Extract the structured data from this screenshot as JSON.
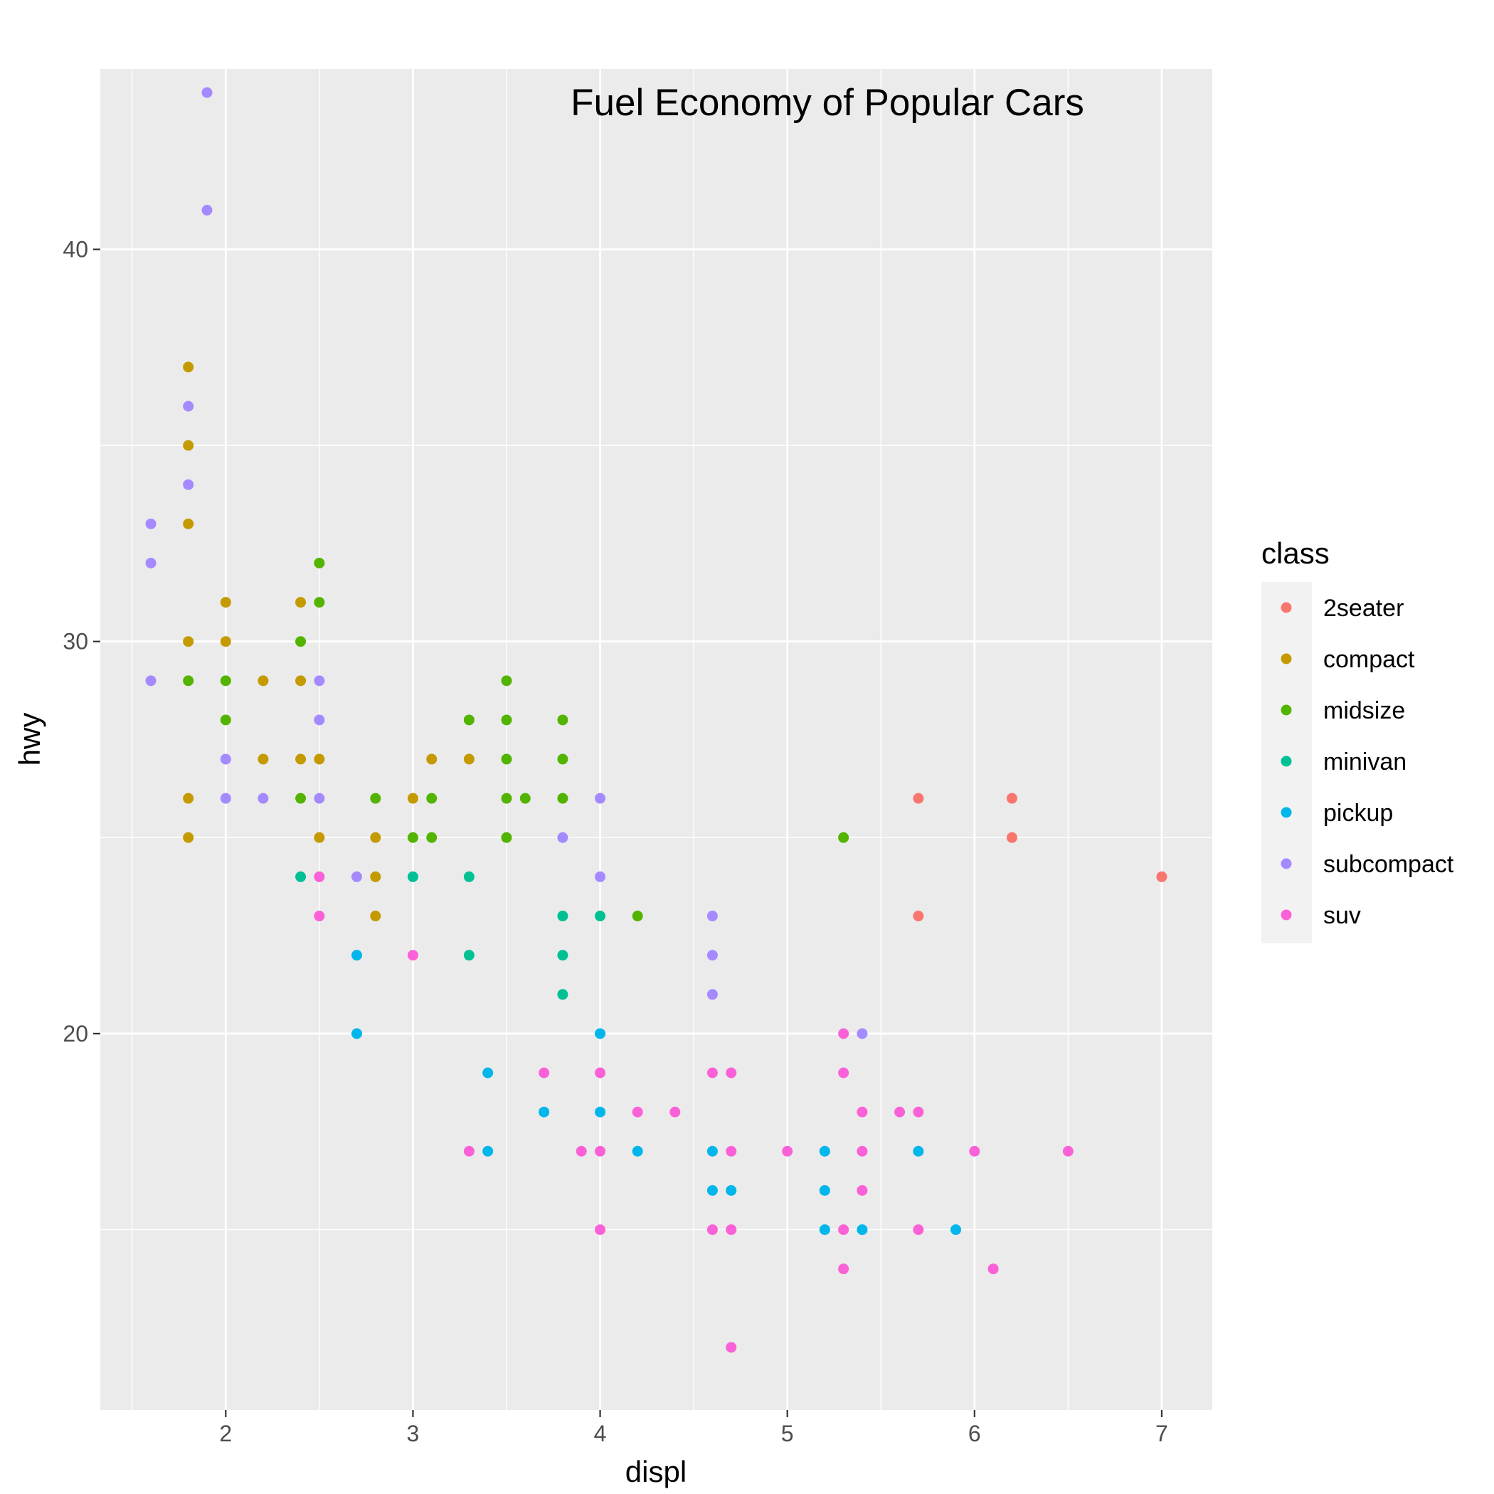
{
  "chart_data": {
    "type": "scatter",
    "title": "Fuel Economy of Popular Cars",
    "xlabel": "displ",
    "ylabel": "hwy",
    "xlim": [
      1.33,
      7.27
    ],
    "ylim": [
      10.4,
      44.6
    ],
    "xticks": [
      2,
      3,
      4,
      5,
      6,
      7
    ],
    "yticks": [
      20,
      30,
      40
    ],
    "grid": true,
    "legend": {
      "title": "class",
      "position": "right",
      "entries": [
        {
          "name": "2seater",
          "color": "#F8766D"
        },
        {
          "name": "compact",
          "color": "#C49A00"
        },
        {
          "name": "midsize",
          "color": "#53B400"
        },
        {
          "name": "minivan",
          "color": "#00C094"
        },
        {
          "name": "pickup",
          "color": "#00B6EB"
        },
        {
          "name": "subcompact",
          "color": "#A58AFF"
        },
        {
          "name": "suv",
          "color": "#FB61D7"
        }
      ]
    },
    "series": [
      {
        "name": "2seater",
        "color": "#F8766D",
        "points": [
          [
            5.7,
            26
          ],
          [
            5.7,
            23
          ],
          [
            6.2,
            26
          ],
          [
            6.2,
            25
          ],
          [
            7.0,
            24
          ]
        ]
      },
      {
        "name": "compact",
        "color": "#C49A00",
        "points": [
          [
            1.8,
            37
          ],
          [
            1.8,
            35
          ],
          [
            1.8,
            33
          ],
          [
            1.8,
            30
          ],
          [
            1.8,
            26
          ],
          [
            1.8,
            25
          ],
          [
            2.0,
            31
          ],
          [
            2.0,
            30
          ],
          [
            2.2,
            29
          ],
          [
            2.2,
            27
          ],
          [
            2.4,
            31
          ],
          [
            2.4,
            29
          ],
          [
            2.4,
            27
          ],
          [
            2.5,
            27
          ],
          [
            2.5,
            25
          ],
          [
            2.8,
            25
          ],
          [
            2.8,
            24
          ],
          [
            2.8,
            23
          ],
          [
            3.0,
            26
          ],
          [
            3.1,
            27
          ],
          [
            3.3,
            27
          ]
        ]
      },
      {
        "name": "midsize",
        "color": "#53B400",
        "points": [
          [
            1.8,
            29
          ],
          [
            2.0,
            29
          ],
          [
            2.0,
            28
          ],
          [
            2.4,
            30
          ],
          [
            2.4,
            26
          ],
          [
            2.5,
            32
          ],
          [
            2.5,
            31
          ],
          [
            2.8,
            26
          ],
          [
            3.0,
            25
          ],
          [
            3.1,
            26
          ],
          [
            3.1,
            25
          ],
          [
            3.3,
            28
          ],
          [
            3.5,
            29
          ],
          [
            3.5,
            28
          ],
          [
            3.5,
            27
          ],
          [
            3.5,
            26
          ],
          [
            3.5,
            25
          ],
          [
            3.6,
            26
          ],
          [
            3.8,
            28
          ],
          [
            3.8,
            27
          ],
          [
            3.8,
            26
          ],
          [
            4.2,
            23
          ],
          [
            5.3,
            25
          ]
        ]
      },
      {
        "name": "minivan",
        "color": "#00C094",
        "points": [
          [
            2.4,
            24
          ],
          [
            3.0,
            24
          ],
          [
            3.3,
            24
          ],
          [
            3.3,
            22
          ],
          [
            3.8,
            23
          ],
          [
            3.8,
            22
          ],
          [
            3.8,
            21
          ],
          [
            4.0,
            23
          ]
        ]
      },
      {
        "name": "pickup",
        "color": "#00B6EB",
        "points": [
          [
            2.7,
            22
          ],
          [
            2.7,
            20
          ],
          [
            3.4,
            19
          ],
          [
            3.4,
            17
          ],
          [
            3.7,
            18
          ],
          [
            4.0,
            20
          ],
          [
            4.0,
            18
          ],
          [
            4.2,
            17
          ],
          [
            4.6,
            17
          ],
          [
            4.6,
            16
          ],
          [
            4.7,
            16
          ],
          [
            5.2,
            17
          ],
          [
            5.2,
            16
          ],
          [
            5.2,
            15
          ],
          [
            5.4,
            15
          ],
          [
            5.7,
            17
          ],
          [
            5.9,
            15
          ]
        ]
      },
      {
        "name": "subcompact",
        "color": "#A58AFF",
        "points": [
          [
            1.6,
            33
          ],
          [
            1.6,
            32
          ],
          [
            1.6,
            29
          ],
          [
            1.8,
            36
          ],
          [
            1.8,
            34
          ],
          [
            1.9,
            44
          ],
          [
            1.9,
            41
          ],
          [
            2.0,
            27
          ],
          [
            2.0,
            26
          ],
          [
            2.2,
            26
          ],
          [
            2.5,
            29
          ],
          [
            2.5,
            28
          ],
          [
            2.5,
            26
          ],
          [
            2.7,
            24
          ],
          [
            3.8,
            25
          ],
          [
            4.0,
            26
          ],
          [
            4.0,
            24
          ],
          [
            4.6,
            23
          ],
          [
            4.6,
            22
          ],
          [
            4.6,
            21
          ],
          [
            5.4,
            20
          ]
        ]
      },
      {
        "name": "suv",
        "color": "#FB61D7",
        "points": [
          [
            2.5,
            24
          ],
          [
            2.5,
            23
          ],
          [
            3.0,
            22
          ],
          [
            3.3,
            17
          ],
          [
            3.7,
            19
          ],
          [
            3.9,
            17
          ],
          [
            4.0,
            19
          ],
          [
            4.0,
            17
          ],
          [
            4.0,
            15
          ],
          [
            4.2,
            18
          ],
          [
            4.4,
            18
          ],
          [
            4.6,
            19
          ],
          [
            4.6,
            15
          ],
          [
            4.7,
            19
          ],
          [
            4.7,
            17
          ],
          [
            4.7,
            15
          ],
          [
            4.7,
            12
          ],
          [
            5.0,
            17
          ],
          [
            5.3,
            20
          ],
          [
            5.3,
            19
          ],
          [
            5.3,
            15
          ],
          [
            5.3,
            14
          ],
          [
            5.4,
            18
          ],
          [
            5.4,
            17
          ],
          [
            5.4,
            16
          ],
          [
            5.6,
            18
          ],
          [
            5.7,
            18
          ],
          [
            5.7,
            15
          ],
          [
            6.0,
            17
          ],
          [
            6.1,
            14
          ],
          [
            6.5,
            17
          ]
        ]
      }
    ]
  }
}
